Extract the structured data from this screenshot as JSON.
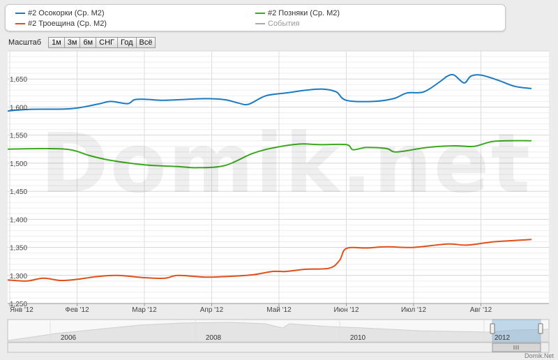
{
  "legend": [
    {
      "label": "#2 Осокорки (Ср. М2)",
      "color": "#1a7ac2"
    },
    {
      "label": "#2 Позняки (Ср. М2)",
      "color": "#3aaa1e"
    },
    {
      "label": "#2 Троещина (Ср. М2)",
      "color": "#e0501a"
    },
    {
      "label": "События",
      "color": "#aaaaaa"
    }
  ],
  "toolbar": {
    "label": "Масштаб",
    "buttons": [
      "1м",
      "3м",
      "6м",
      "СНГ",
      "Год",
      "Всё"
    ]
  },
  "watermark": "Domik.net",
  "credit": "Domik.Net",
  "chart_data": {
    "type": "line",
    "x_ticks": [
      "Янв '12",
      "Фев '12",
      "Мар '12",
      "Апр '12",
      "Май '12",
      "Июн '12",
      "Июл '12",
      "Авг '12"
    ],
    "y_ticks": [
      "1,250",
      "1,300",
      "1,350",
      "1,400",
      "1,450",
      "1,500",
      "1,550",
      "1,600",
      "1,650"
    ],
    "ylim": [
      1250,
      1700
    ],
    "xlim": [
      0,
      7.75
    ],
    "series": [
      {
        "name": "#2 Осокорки (Ср. М2)",
        "color": "#1a7ac2",
        "x": [
          0,
          0.3,
          0.9,
          1.3,
          1.5,
          1.75,
          1.85,
          2.0,
          2.25,
          2.5,
          2.9,
          3.2,
          3.4,
          3.55,
          3.8,
          4.1,
          4.4,
          4.65,
          4.85,
          5.0,
          5.4,
          5.7,
          5.9,
          6.15,
          6.4,
          6.5,
          6.6,
          6.75,
          6.85,
          7.0,
          7.25,
          7.5,
          7.75
        ],
        "y": [
          1593,
          1596,
          1597,
          1605,
          1610,
          1606,
          1613,
          1614,
          1612,
          1613,
          1615,
          1613,
          1607,
          1605,
          1620,
          1625,
          1630,
          1632,
          1627,
          1612,
          1610,
          1615,
          1625,
          1627,
          1646,
          1655,
          1657,
          1643,
          1655,
          1657,
          1648,
          1637,
          1633
        ]
      },
      {
        "name": "#2 Позняки (Ср. М2)",
        "color": "#3aaa1e",
        "x": [
          0,
          0.5,
          0.9,
          1.2,
          1.5,
          2.0,
          2.5,
          2.8,
          3.2,
          3.6,
          3.9,
          4.3,
          4.6,
          5.0,
          5.1,
          5.3,
          5.6,
          5.75,
          6.2,
          6.6,
          6.9,
          7.2,
          7.75
        ],
        "y": [
          1525,
          1526,
          1524,
          1513,
          1505,
          1497,
          1494,
          1492,
          1496,
          1517,
          1527,
          1534,
          1533,
          1533,
          1524,
          1528,
          1526,
          1520,
          1528,
          1531,
          1530,
          1539,
          1540
        ]
      },
      {
        "name": "#2 Троещина (Ср. М2)",
        "color": "#e0501a",
        "x": [
          0,
          0.25,
          0.5,
          0.75,
          1.0,
          1.3,
          1.6,
          2.0,
          2.3,
          2.5,
          2.9,
          3.2,
          3.6,
          3.9,
          4.1,
          4.4,
          4.75,
          4.9,
          5.0,
          5.3,
          5.6,
          6.0,
          6.5,
          6.8,
          7.2,
          7.75
        ],
        "y": [
          1292,
          1290,
          1295,
          1291,
          1293,
          1298,
          1300,
          1296,
          1295,
          1300,
          1297,
          1298,
          1301,
          1307,
          1307,
          1311,
          1313,
          1327,
          1348,
          1349,
          1351,
          1350,
          1356,
          1354,
          1360,
          1364
        ]
      }
    ]
  },
  "navigator": {
    "year_labels": [
      "2006",
      "2008",
      "2010",
      "2012"
    ]
  }
}
